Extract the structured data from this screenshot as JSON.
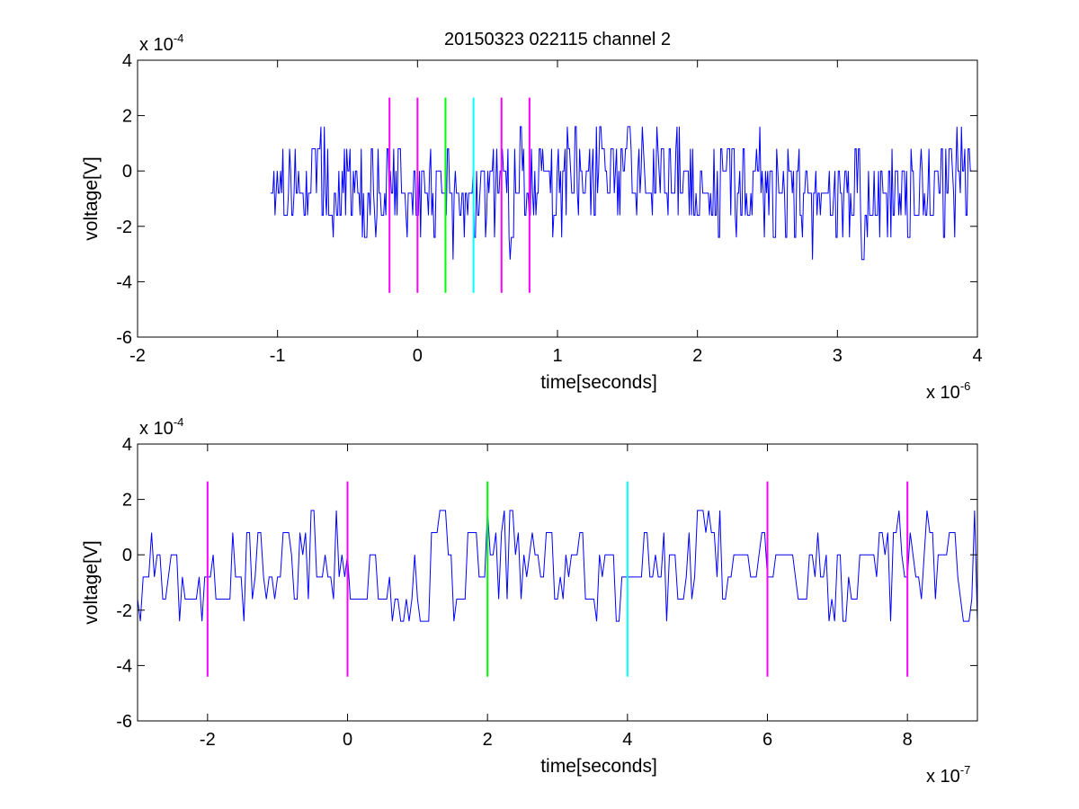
{
  "title": "20150323 022115 channel 2",
  "colors": {
    "signal": "#0000ff",
    "marker_magenta": "#ff00ff",
    "marker_green": "#00ff00",
    "marker_cyan": "#00ffff",
    "axes": "#000000",
    "background": "#ffffff"
  },
  "chart_data": [
    {
      "type": "line",
      "title": "20150323 022115 channel 2",
      "xlabel": "time[seconds]",
      "ylabel": "voltage[V]",
      "x_multiplier": {
        "base": "x 10",
        "exponent": "-6"
      },
      "y_multiplier": {
        "base": "x 10",
        "exponent": "-4"
      },
      "xlim": [
        -2,
        4
      ],
      "ylim": [
        -6,
        4
      ],
      "x_ticks": [
        "-2",
        "-1",
        "0",
        "1",
        "2",
        "3",
        "4"
      ],
      "y_ticks": [
        "-6",
        "-4",
        "-2",
        "0",
        "2",
        "4"
      ],
      "grid": false,
      "series": [
        {
          "x_range": [
            -1.05,
            3.96
          ],
          "sample_step": 0.008,
          "baseline": -0.5,
          "levels": [
            -4,
            -3.2,
            -2.4,
            -1.6,
            -0.8,
            0,
            0.8,
            1.6,
            2.4
          ],
          "color": "#0000ff"
        }
      ],
      "markers": [
        {
          "x": -0.2,
          "y_range": [
            -4.4,
            2.65
          ],
          "color": "#ff00ff"
        },
        {
          "x": 0.0,
          "y_range": [
            -4.4,
            2.65
          ],
          "color": "#ff00ff"
        },
        {
          "x": 0.2,
          "y_range": [
            -4.4,
            2.65
          ],
          "color": "#00ff00"
        },
        {
          "x": 0.4,
          "y_range": [
            -4.4,
            2.65
          ],
          "color": "#00ffff"
        },
        {
          "x": 0.6,
          "y_range": [
            -4.4,
            2.65
          ],
          "color": "#ff00ff"
        },
        {
          "x": 0.8,
          "y_range": [
            -4.4,
            2.65
          ],
          "color": "#ff00ff"
        }
      ]
    },
    {
      "type": "line",
      "xlabel": "time[seconds]",
      "ylabel": "voltage[V]",
      "x_multiplier": {
        "base": "x 10",
        "exponent": "-7"
      },
      "y_multiplier": {
        "base": "x 10",
        "exponent": "-4"
      },
      "xlim": [
        -3,
        9
      ],
      "ylim": [
        -6,
        4
      ],
      "x_ticks": [
        "-2",
        "0",
        "2",
        "4",
        "6",
        "8"
      ],
      "y_ticks": [
        "-6",
        "-4",
        "-2",
        "0",
        "2",
        "4"
      ],
      "grid": false,
      "series": [
        {
          "x_range": [
            -3,
            9
          ],
          "sample_step": 0.04,
          "baseline": -0.6,
          "levels": [
            -4,
            -3.2,
            -2.4,
            -1.6,
            -0.8,
            0,
            0.8,
            1.6,
            2.4
          ],
          "color": "#0000ff"
        }
      ],
      "markers": [
        {
          "x": -2,
          "y_range": [
            -4.4,
            2.65
          ],
          "color": "#ff00ff"
        },
        {
          "x": 0,
          "y_range": [
            -4.4,
            2.65
          ],
          "color": "#ff00ff"
        },
        {
          "x": 2,
          "y_range": [
            -4.4,
            2.65
          ],
          "color": "#00ff00"
        },
        {
          "x": 4,
          "y_range": [
            -4.4,
            2.65
          ],
          "color": "#00ffff"
        },
        {
          "x": 6,
          "y_range": [
            -4.4,
            2.65
          ],
          "color": "#ff00ff"
        },
        {
          "x": 8,
          "y_range": [
            -4.4,
            2.65
          ],
          "color": "#ff00ff"
        }
      ]
    }
  ]
}
